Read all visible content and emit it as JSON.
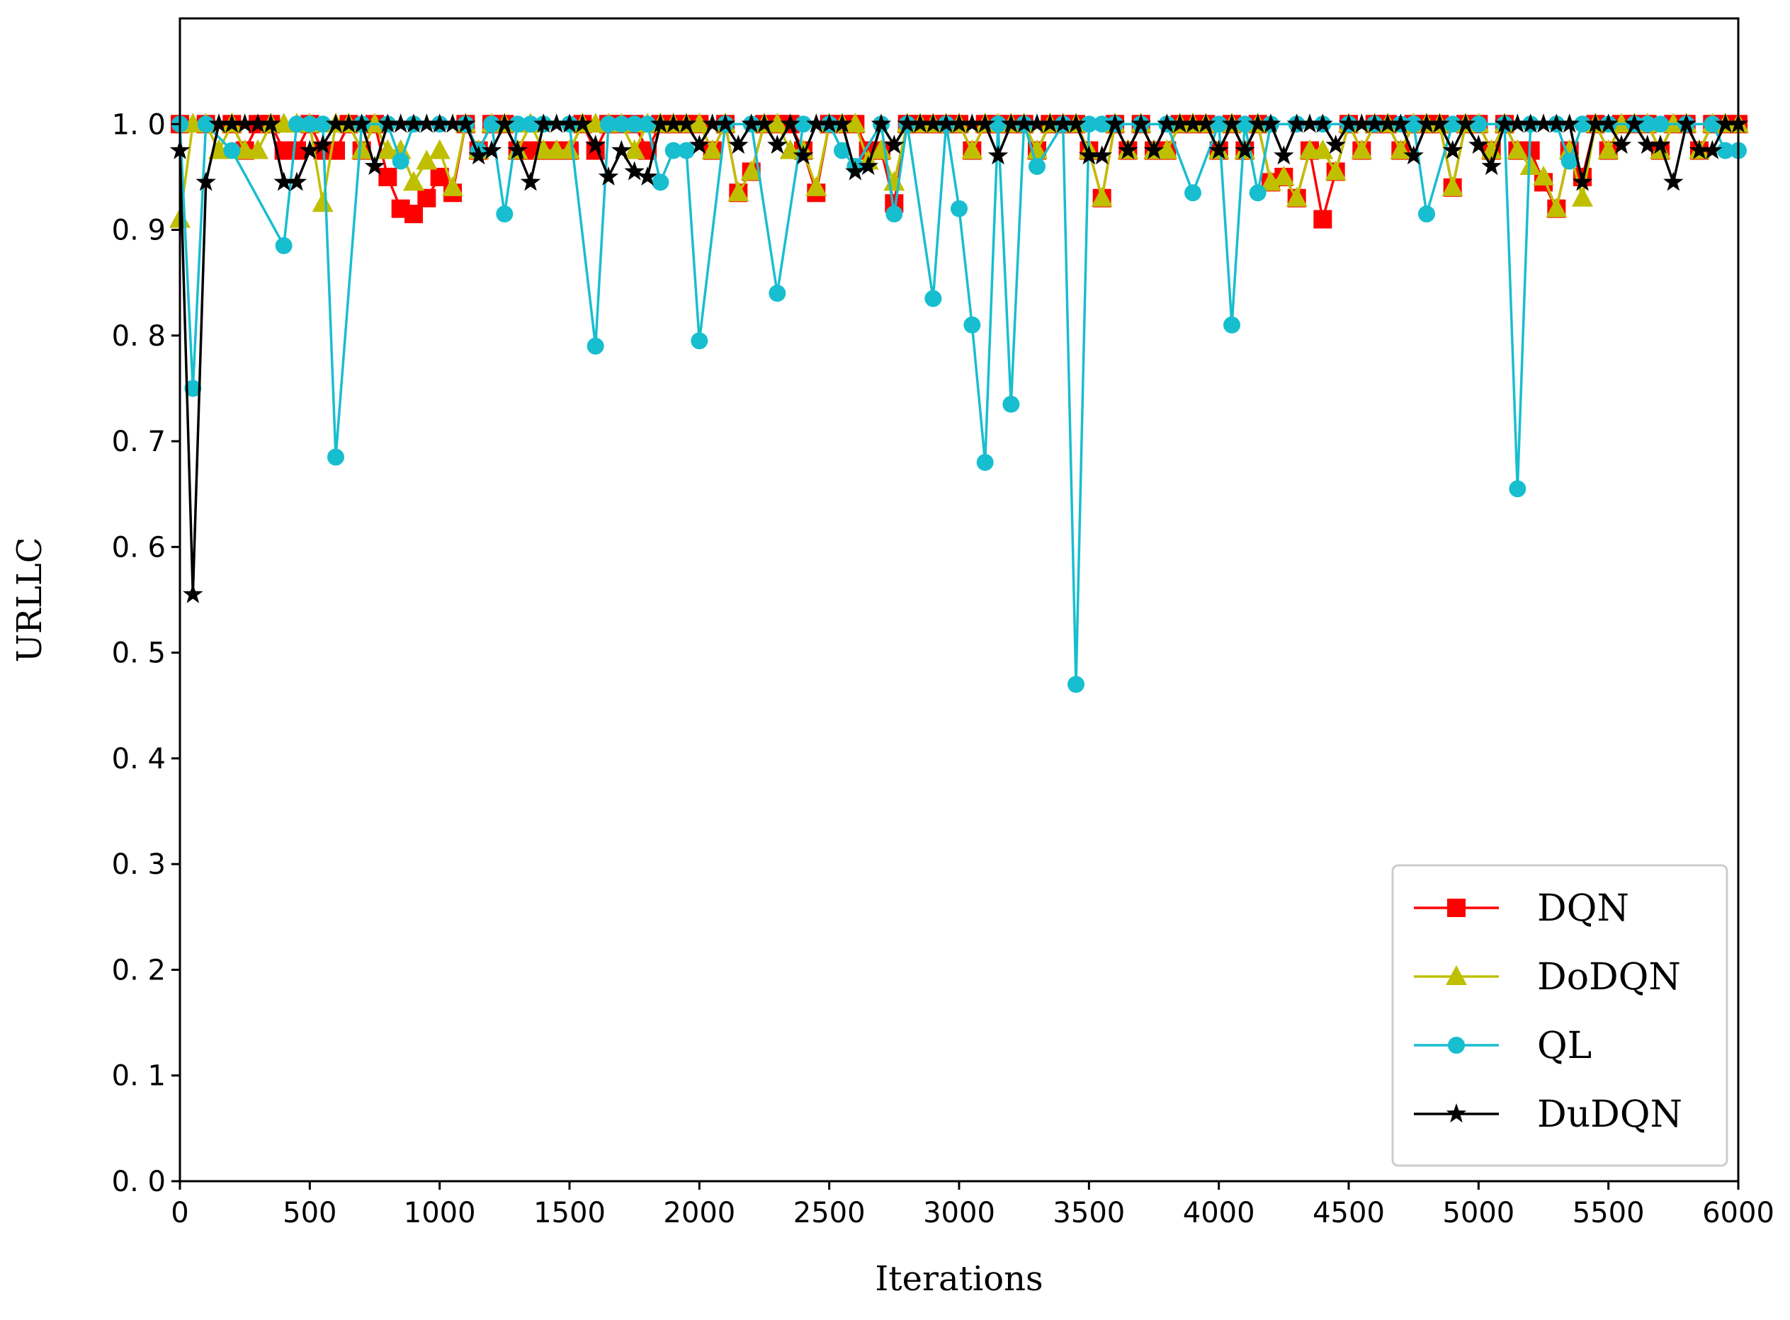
{
  "chart_data": {
    "type": "line",
    "title": "",
    "xlabel": "Iterations",
    "ylabel": "URLLC",
    "xlim": [
      0,
      6000
    ],
    "ylim": [
      0,
      1.1
    ],
    "x_ticks": [
      0,
      500,
      1000,
      1500,
      2000,
      2500,
      3000,
      3500,
      4000,
      4500,
      5000,
      5500,
      6000
    ],
    "x_tick_labels": [
      "0",
      "500",
      "1000",
      "1500",
      "2000",
      "2500",
      "3000",
      "3500",
      "4000",
      "4500",
      "5000",
      "5500",
      "6000"
    ],
    "y_ticks": [
      0,
      0.1,
      0.2,
      0.3,
      0.4,
      0.5,
      0.6,
      0.7,
      0.8,
      0.9,
      1.0
    ],
    "y_tick_labels": [
      "0. 0",
      "0. 1",
      "0. 2",
      "0. 3",
      "0. 4",
      "0. 5",
      "0. 6",
      "0. 7",
      "0. 8",
      "0. 9",
      "1. 0"
    ],
    "grid": false,
    "legend_position": "lower-right",
    "series": [
      {
        "name": "DQN",
        "color": "#ff0000",
        "marker": "square",
        "x": [
          0,
          100,
          200,
          250,
          300,
          350,
          400,
          450,
          500,
          550,
          600,
          650,
          700,
          750,
          800,
          850,
          900,
          950,
          1000,
          1050,
          1100,
          1150,
          1200,
          1250,
          1300,
          1350,
          1400,
          1450,
          1500,
          1550,
          1600,
          1650,
          1700,
          1750,
          1800,
          1850,
          1900,
          1950,
          2000,
          2050,
          2100,
          2150,
          2200,
          2250,
          2300,
          2350,
          2400,
          2450,
          2500,
          2550,
          2600,
          2650,
          2700,
          2750,
          2800,
          2850,
          2900,
          2950,
          3000,
          3050,
          3100,
          3150,
          3200,
          3250,
          3300,
          3350,
          3400,
          3450,
          3500,
          3550,
          3600,
          3650,
          3700,
          3750,
          3800,
          3850,
          3900,
          3950,
          4000,
          4050,
          4100,
          4150,
          4200,
          4250,
          4300,
          4350,
          4400,
          4450,
          4500,
          4550,
          4600,
          4650,
          4700,
          4750,
          4800,
          4850,
          4900,
          4950,
          5000,
          5050,
          5100,
          5150,
          5200,
          5250,
          5300,
          5350,
          5400,
          5450,
          5500,
          5550,
          5600,
          5650,
          5700,
          5750,
          5800,
          5850,
          5900,
          5950,
          6000
        ],
        "y": [
          1.0,
          1.0,
          1.0,
          0.975,
          1.0,
          1.0,
          0.975,
          0.975,
          1.0,
          0.975,
          0.975,
          1.0,
          0.975,
          1.0,
          0.95,
          0.92,
          0.915,
          0.93,
          0.95,
          0.935,
          1.0,
          0.975,
          1.0,
          1.0,
          0.975,
          0.975,
          0.975,
          0.975,
          0.975,
          1.0,
          0.975,
          1.0,
          1.0,
          1.0,
          0.975,
          1.0,
          1.0,
          1.0,
          1.0,
          0.975,
          1.0,
          0.935,
          0.955,
          1.0,
          1.0,
          1.0,
          0.975,
          0.935,
          1.0,
          1.0,
          1.0,
          0.975,
          0.975,
          0.925,
          1.0,
          1.0,
          1.0,
          1.0,
          1.0,
          0.975,
          1.0,
          1.0,
          1.0,
          1.0,
          0.975,
          1.0,
          1.0,
          1.0,
          0.975,
          0.93,
          1.0,
          0.975,
          1.0,
          0.975,
          0.975,
          1.0,
          1.0,
          1.0,
          0.975,
          1.0,
          0.975,
          1.0,
          0.945,
          0.95,
          0.93,
          0.975,
          0.91,
          0.955,
          1.0,
          0.975,
          1.0,
          1.0,
          0.975,
          1.0,
          1.0,
          1.0,
          0.94,
          1.0,
          1.0,
          0.975,
          1.0,
          0.975,
          0.975,
          0.945,
          0.92,
          0.975,
          0.95,
          1.0,
          0.975,
          1.0,
          1.0,
          1.0,
          0.975,
          1.0,
          1.0,
          0.975,
          1.0,
          1.0,
          1.0
        ]
      },
      {
        "name": "DoDQN",
        "color": "#bfbf00",
        "marker": "triangle",
        "x": [
          0,
          50,
          100,
          150,
          200,
          250,
          300,
          350,
          400,
          450,
          500,
          550,
          600,
          650,
          700,
          750,
          800,
          850,
          900,
          950,
          1000,
          1050,
          1100,
          1150,
          1200,
          1250,
          1300,
          1350,
          1400,
          1450,
          1500,
          1550,
          1600,
          1650,
          1700,
          1750,
          1800,
          1850,
          1900,
          1950,
          2000,
          2050,
          2100,
          2150,
          2200,
          2250,
          2300,
          2350,
          2400,
          2450,
          2500,
          2550,
          2600,
          2650,
          2700,
          2750,
          2800,
          2850,
          2900,
          2950,
          3000,
          3050,
          3100,
          3150,
          3200,
          3250,
          3300,
          3350,
          3400,
          3450,
          3500,
          3550,
          3600,
          3650,
          3700,
          3750,
          3800,
          3850,
          3900,
          3950,
          4000,
          4050,
          4100,
          4150,
          4200,
          4250,
          4300,
          4350,
          4400,
          4450,
          4500,
          4550,
          4600,
          4650,
          4700,
          4750,
          4800,
          4850,
          4900,
          4950,
          5000,
          5050,
          5100,
          5150,
          5200,
          5250,
          5300,
          5350,
          5400,
          5450,
          5500,
          5550,
          5600,
          5650,
          5700,
          5750,
          5800,
          5850,
          5900,
          5950,
          6000
        ],
        "y": [
          0.91,
          1.0,
          1.0,
          0.975,
          1.0,
          0.975,
          0.975,
          1.0,
          1.0,
          1.0,
          1.0,
          0.925,
          1.0,
          1.0,
          0.975,
          1.0,
          0.975,
          0.975,
          0.945,
          0.965,
          0.975,
          0.94,
          1.0,
          0.975,
          1.0,
          1.0,
          0.975,
          1.0,
          0.975,
          0.975,
          0.975,
          1.0,
          1.0,
          1.0,
          1.0,
          0.975,
          1.0,
          1.0,
          1.0,
          1.0,
          1.0,
          0.975,
          1.0,
          0.935,
          0.955,
          1.0,
          1.0,
          0.975,
          0.975,
          0.94,
          1.0,
          1.0,
          1.0,
          0.965,
          0.975,
          0.945,
          1.0,
          1.0,
          1.0,
          1.0,
          1.0,
          0.975,
          1.0,
          1.0,
          1.0,
          1.0,
          0.975,
          1.0,
          1.0,
          1.0,
          0.975,
          0.93,
          1.0,
          0.975,
          1.0,
          0.975,
          0.975,
          1.0,
          1.0,
          1.0,
          0.975,
          1.0,
          0.975,
          1.0,
          0.945,
          0.95,
          0.93,
          0.975,
          0.975,
          0.955,
          1.0,
          0.975,
          1.0,
          1.0,
          0.975,
          1.0,
          1.0,
          1.0,
          0.94,
          1.0,
          1.0,
          0.975,
          1.0,
          0.975,
          0.96,
          0.95,
          0.92,
          0.975,
          0.93,
          1.0,
          0.975,
          1.0,
          1.0,
          1.0,
          0.975,
          1.0,
          1.0,
          0.975,
          1.0,
          1.0,
          1.0
        ]
      },
      {
        "name": "QL",
        "color": "#17becf",
        "marker": "circle",
        "x": [
          0,
          50,
          100,
          200,
          400,
          450,
          500,
          550,
          600,
          700,
          800,
          850,
          900,
          1000,
          1100,
          1150,
          1200,
          1250,
          1300,
          1350,
          1400,
          1500,
          1600,
          1650,
          1700,
          1750,
          1800,
          1850,
          1900,
          1950,
          2000,
          2100,
          2200,
          2300,
          2400,
          2500,
          2550,
          2600,
          2700,
          2750,
          2800,
          2900,
          2950,
          3000,
          3050,
          3100,
          3150,
          3200,
          3250,
          3300,
          3400,
          3450,
          3500,
          3550,
          3600,
          3700,
          3800,
          3900,
          4000,
          4050,
          4100,
          4150,
          4200,
          4300,
          4400,
          4500,
          4600,
          4700,
          4750,
          4800,
          4900,
          5000,
          5100,
          5150,
          5200,
          5300,
          5350,
          5400,
          5500,
          5600,
          5650,
          5700,
          5800,
          5900,
          5950,
          6000
        ],
        "y": [
          1.0,
          0.75,
          1.0,
          0.975,
          0.885,
          1.0,
          1.0,
          1.0,
          0.685,
          1.0,
          1.0,
          0.965,
          1.0,
          1.0,
          1.0,
          0.975,
          1.0,
          0.915,
          1.0,
          1.0,
          1.0,
          1.0,
          0.79,
          1.0,
          1.0,
          1.0,
          1.0,
          0.945,
          0.975,
          0.975,
          0.795,
          1.0,
          1.0,
          0.84,
          1.0,
          1.0,
          0.975,
          0.96,
          1.0,
          0.915,
          1.0,
          0.835,
          1.0,
          0.92,
          0.81,
          0.68,
          1.0,
          0.735,
          1.0,
          0.96,
          1.0,
          0.47,
          1.0,
          1.0,
          1.0,
          1.0,
          1.0,
          0.935,
          1.0,
          0.81,
          1.0,
          0.935,
          1.0,
          1.0,
          1.0,
          1.0,
          1.0,
          1.0,
          1.0,
          0.915,
          1.0,
          1.0,
          1.0,
          0.655,
          1.0,
          1.0,
          0.965,
          1.0,
          1.0,
          1.0,
          1.0,
          1.0,
          1.0,
          1.0,
          0.975,
          0.975
        ]
      },
      {
        "name": "DuDQN",
        "color": "#000000",
        "marker": "star",
        "x": [
          0,
          50,
          100,
          150,
          200,
          250,
          300,
          350,
          400,
          450,
          500,
          550,
          600,
          650,
          700,
          750,
          800,
          850,
          900,
          950,
          1000,
          1050,
          1100,
          1150,
          1200,
          1250,
          1300,
          1350,
          1400,
          1450,
          1500,
          1550,
          1600,
          1650,
          1700,
          1750,
          1800,
          1850,
          1900,
          1950,
          2000,
          2050,
          2100,
          2150,
          2200,
          2250,
          2300,
          2350,
          2400,
          2450,
          2500,
          2550,
          2600,
          2650,
          2700,
          2750,
          2800,
          2850,
          2900,
          2950,
          3000,
          3050,
          3100,
          3150,
          3200,
          3250,
          3300,
          3350,
          3400,
          3450,
          3500,
          3550,
          3600,
          3650,
          3700,
          3750,
          3800,
          3850,
          3900,
          3950,
          4000,
          4050,
          4100,
          4150,
          4200,
          4250,
          4300,
          4350,
          4400,
          4450,
          4500,
          4550,
          4600,
          4650,
          4700,
          4750,
          4800,
          4850,
          4900,
          4950,
          5000,
          5050,
          5100,
          5150,
          5200,
          5250,
          5300,
          5350,
          5400,
          5450,
          5500,
          5550,
          5600,
          5650,
          5700,
          5750,
          5800,
          5850,
          5900,
          5950,
          6000
        ],
        "y": [
          0.975,
          0.555,
          0.945,
          1.0,
          1.0,
          1.0,
          1.0,
          1.0,
          0.945,
          0.945,
          0.975,
          0.98,
          1.0,
          1.0,
          1.0,
          0.96,
          1.0,
          1.0,
          1.0,
          1.0,
          1.0,
          1.0,
          1.0,
          0.97,
          0.975,
          1.0,
          0.975,
          0.945,
          1.0,
          1.0,
          1.0,
          1.0,
          0.98,
          0.95,
          0.975,
          0.955,
          0.95,
          1.0,
          1.0,
          1.0,
          0.98,
          1.0,
          1.0,
          0.98,
          1.0,
          1.0,
          0.98,
          1.0,
          0.97,
          1.0,
          1.0,
          1.0,
          0.955,
          0.96,
          1.0,
          0.98,
          1.0,
          1.0,
          1.0,
          1.0,
          1.0,
          1.0,
          1.0,
          0.97,
          1.0,
          1.0,
          1.0,
          1.0,
          1.0,
          1.0,
          0.97,
          0.97,
          1.0,
          0.975,
          1.0,
          0.975,
          1.0,
          1.0,
          1.0,
          1.0,
          0.975,
          1.0,
          0.975,
          1.0,
          1.0,
          0.97,
          1.0,
          1.0,
          1.0,
          0.98,
          1.0,
          1.0,
          1.0,
          1.0,
          1.0,
          0.97,
          1.0,
          1.0,
          0.975,
          1.0,
          0.98,
          0.96,
          1.0,
          1.0,
          1.0,
          1.0,
          1.0,
          1.0,
          0.945,
          1.0,
          1.0,
          0.98,
          1.0,
          0.98,
          0.98,
          0.945,
          1.0,
          0.975,
          0.975,
          1.0,
          1.0
        ]
      }
    ]
  }
}
